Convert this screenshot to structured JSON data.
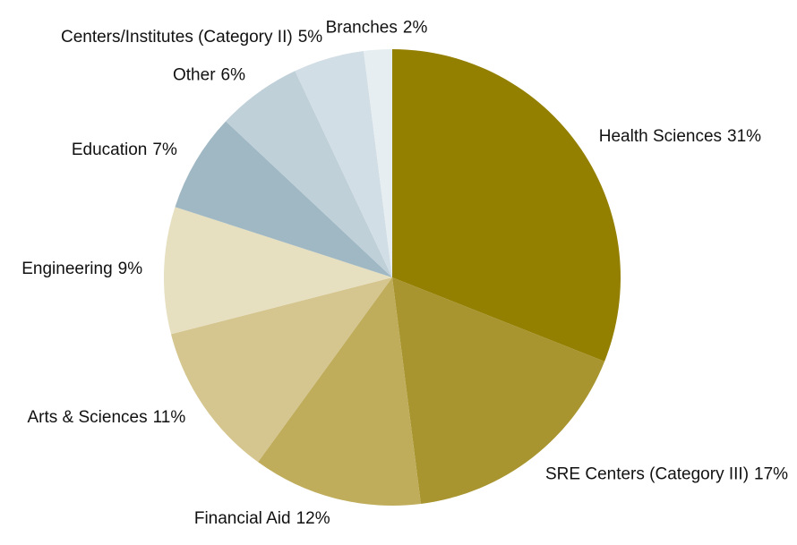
{
  "chart_data": {
    "type": "pie",
    "categories": [
      "Health Sciences",
      "SRE Centers (Category III)",
      "Financial Aid",
      "Arts & Sciences",
      "Engineering",
      "Education",
      "Other",
      "Centers/Institutes (Category II)",
      "Branches"
    ],
    "values": [
      31,
      17,
      12,
      11,
      9,
      7,
      6,
      5,
      2
    ],
    "value_labels": [
      "31%",
      "17%",
      "12%",
      "11%",
      "9%",
      "7%",
      "6%",
      "5%",
      "2%"
    ],
    "colors": [
      "#937f00",
      "#a8952f",
      "#bfad5c",
      "#d5c58e",
      "#e6dfc0",
      "#9fb8c4",
      "#bfd0d9",
      "#d2dee5",
      "#e6eef1"
    ],
    "start_angle": 90,
    "direction": "clockwise"
  }
}
